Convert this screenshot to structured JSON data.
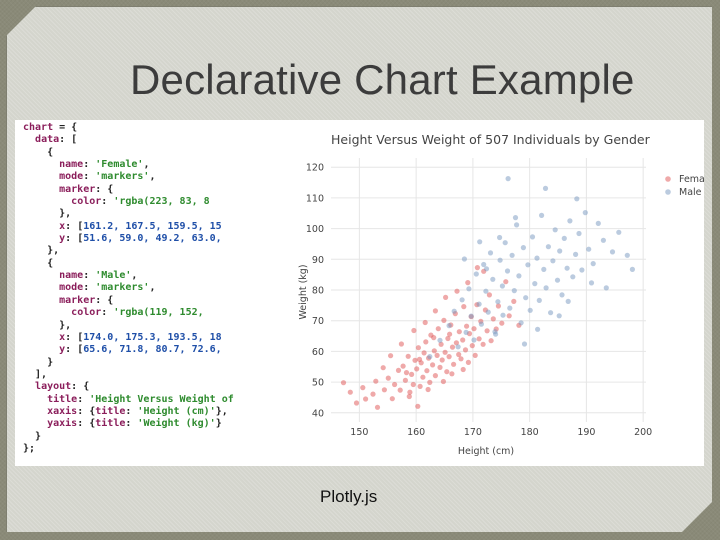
{
  "slide": {
    "title": "Declarative Chart Example",
    "caption": "Plotly.js"
  },
  "code": {
    "lines": [
      [
        [
          "key",
          "chart"
        ],
        [
          "pun",
          " = {"
        ]
      ],
      [
        [
          "pun",
          "  "
        ],
        [
          "key",
          "data"
        ],
        [
          "pun",
          ": ["
        ]
      ],
      [
        [
          "pun",
          "    {"
        ]
      ],
      [
        [
          "pun",
          "      "
        ],
        [
          "key",
          "name"
        ],
        [
          "pun",
          ": "
        ],
        [
          "str",
          "'Female'"
        ],
        [
          "pun",
          ","
        ]
      ],
      [
        [
          "pun",
          "      "
        ],
        [
          "key",
          "mode"
        ],
        [
          "pun",
          ": "
        ],
        [
          "str",
          "'markers'"
        ],
        [
          "pun",
          ","
        ]
      ],
      [
        [
          "pun",
          "      "
        ],
        [
          "key",
          "marker"
        ],
        [
          "pun",
          ": {"
        ]
      ],
      [
        [
          "pun",
          "        "
        ],
        [
          "key",
          "color"
        ],
        [
          "pun",
          ": "
        ],
        [
          "str",
          "'rgba(223, 83, 8"
        ]
      ],
      [
        [
          "pun",
          "      },"
        ]
      ],
      [
        [
          "pun",
          "      "
        ],
        [
          "key",
          "x"
        ],
        [
          "pun",
          ": ["
        ],
        [
          "num",
          "161.2, 167.5, 159.5, 15"
        ]
      ],
      [
        [
          "pun",
          "      "
        ],
        [
          "key",
          "y"
        ],
        [
          "pun",
          ": ["
        ],
        [
          "num",
          "51.6, 59.0, 49.2, 63.0,"
        ]
      ],
      [
        [
          "pun",
          "    },"
        ]
      ],
      [
        [
          "pun",
          "    {"
        ]
      ],
      [
        [
          "pun",
          "      "
        ],
        [
          "key",
          "name"
        ],
        [
          "pun",
          ": "
        ],
        [
          "str",
          "'Male'"
        ],
        [
          "pun",
          ","
        ]
      ],
      [
        [
          "pun",
          "      "
        ],
        [
          "key",
          "mode"
        ],
        [
          "pun",
          ": "
        ],
        [
          "str",
          "'markers'"
        ],
        [
          "pun",
          ","
        ]
      ],
      [
        [
          "pun",
          "      "
        ],
        [
          "key",
          "marker"
        ],
        [
          "pun",
          ": {"
        ]
      ],
      [
        [
          "pun",
          "        "
        ],
        [
          "key",
          "color"
        ],
        [
          "pun",
          ": "
        ],
        [
          "str",
          "'rgba(119, 152,"
        ]
      ],
      [
        [
          "pun",
          "      },"
        ]
      ],
      [
        [
          "pun",
          "      "
        ],
        [
          "key",
          "x"
        ],
        [
          "pun",
          ": ["
        ],
        [
          "num",
          "174.0, 175.3, 193.5, 18"
        ]
      ],
      [
        [
          "pun",
          "      "
        ],
        [
          "key",
          "y"
        ],
        [
          "pun",
          ": ["
        ],
        [
          "num",
          "65.6, 71.8, 80.7, 72.6,"
        ]
      ],
      [
        [
          "pun",
          "    }"
        ]
      ],
      [
        [
          "pun",
          "  ],"
        ]
      ],
      [
        [
          "pun",
          "  "
        ],
        [
          "key",
          "layout"
        ],
        [
          "pun",
          ": {"
        ]
      ],
      [
        [
          "pun",
          "    "
        ],
        [
          "key",
          "title"
        ],
        [
          "pun",
          ": "
        ],
        [
          "str",
          "'Height Versus Weight of"
        ]
      ],
      [
        [
          "pun",
          "    "
        ],
        [
          "key",
          "xaxis"
        ],
        [
          "pun",
          ": {"
        ],
        [
          "key",
          "title"
        ],
        [
          "pun",
          ": "
        ],
        [
          "str",
          "'Height (cm)'"
        ],
        [
          "pun",
          "},"
        ]
      ],
      [
        [
          "pun",
          "    "
        ],
        [
          "key",
          "yaxis"
        ],
        [
          "pun",
          ": {"
        ],
        [
          "key",
          "title"
        ],
        [
          "pun",
          ": "
        ],
        [
          "str",
          "'Weight (kg)'"
        ],
        [
          "pun",
          "}"
        ]
      ],
      [
        [
          "pun",
          "  }"
        ]
      ],
      [
        [
          "pun",
          "};"
        ]
      ]
    ]
  },
  "chart_data": {
    "type": "scatter",
    "title": "Height Versus Weight of 507 Individuals by Gender",
    "xlabel": "Height (cm)",
    "ylabel": "Weight (kg)",
    "xlim": [
      145,
      200.5
    ],
    "ylim": [
      37,
      123
    ],
    "xticks": [
      150,
      160,
      170,
      180,
      190,
      200
    ],
    "yticks": [
      40,
      50,
      60,
      70,
      80,
      90,
      100,
      110,
      120
    ],
    "grid": true,
    "legend_position": "top-right",
    "series": [
      {
        "name": "Female",
        "color": "rgba(223, 83, 83, 0.5)",
        "points": [
          [
            147.2,
            49.8
          ],
          [
            149.5,
            43.2
          ],
          [
            151.1,
            44.5
          ],
          [
            152.4,
            46.1
          ],
          [
            153.2,
            41.8
          ],
          [
            154.4,
            47.5
          ],
          [
            155.1,
            51.3
          ],
          [
            155.8,
            44.6
          ],
          [
            156.2,
            49.2
          ],
          [
            156.9,
            53.8
          ],
          [
            157.2,
            47.4
          ],
          [
            157.7,
            55.2
          ],
          [
            158.1,
            50.6
          ],
          [
            158.6,
            58.4
          ],
          [
            158.9,
            46.7
          ],
          [
            159.2,
            52.5
          ],
          [
            159.5,
            49.2
          ],
          [
            159.8,
            57.1
          ],
          [
            160.1,
            54.3
          ],
          [
            160.4,
            61.2
          ],
          [
            160.7,
            48.6
          ],
          [
            160.9,
            56.3
          ],
          [
            161.2,
            51.6
          ],
          [
            161.4,
            59.5
          ],
          [
            161.7,
            63.1
          ],
          [
            161.9,
            53.7
          ],
          [
            162.2,
            57.8
          ],
          [
            162.4,
            49.9
          ],
          [
            162.6,
            65.3
          ],
          [
            162.9,
            55.6
          ],
          [
            163.2,
            60.2
          ],
          [
            163.4,
            52.1
          ],
          [
            163.7,
            58.7
          ],
          [
            163.9,
            67.4
          ],
          [
            164.2,
            54.8
          ],
          [
            164.4,
            62.3
          ],
          [
            164.6,
            57.2
          ],
          [
            164.9,
            70.1
          ],
          [
            165.1,
            59.7
          ],
          [
            165.4,
            53.4
          ],
          [
            165.6,
            64.2
          ],
          [
            165.8,
            58.3
          ],
          [
            166.1,
            68.6
          ],
          [
            166.4,
            61.4
          ],
          [
            166.6,
            55.8
          ],
          [
            166.9,
            72.3
          ],
          [
            167.1,
            62.8
          ],
          [
            167.5,
            59.0
          ],
          [
            167.6,
            66.4
          ],
          [
            167.9,
            57.6
          ],
          [
            168.2,
            63.7
          ],
          [
            168.4,
            74.6
          ],
          [
            168.7,
            60.5
          ],
          [
            168.9,
            68.2
          ],
          [
            169.2,
            56.4
          ],
          [
            169.4,
            65.8
          ],
          [
            169.7,
            71.3
          ],
          [
            169.9,
            61.9
          ],
          [
            170.2,
            67.4
          ],
          [
            170.4,
            58.7
          ],
          [
            170.7,
            75.2
          ],
          [
            171.1,
            64.1
          ],
          [
            171.4,
            69.8
          ],
          [
            171.8,
            62.3
          ],
          [
            172.2,
            73.5
          ],
          [
            172.5,
            66.7
          ],
          [
            172.9,
            78.4
          ],
          [
            173.2,
            63.5
          ],
          [
            173.6,
            70.6
          ],
          [
            174.1,
            67.3
          ],
          [
            174.5,
            74.8
          ],
          [
            175.1,
            69.2
          ],
          [
            175.8,
            82.7
          ],
          [
            176.4,
            71.6
          ],
          [
            177.2,
            76.3
          ],
          [
            178.1,
            68.5
          ],
          [
            160.3,
            42.1
          ],
          [
            158.8,
            45.3
          ],
          [
            162.1,
            47.6
          ],
          [
            164.8,
            50.2
          ],
          [
            166.3,
            52.7
          ],
          [
            168.3,
            54.1
          ],
          [
            155.5,
            58.6
          ],
          [
            157.4,
            62.4
          ],
          [
            159.6,
            66.8
          ],
          [
            161.6,
            69.4
          ],
          [
            163.4,
            73.2
          ],
          [
            165.2,
            77.6
          ],
          [
            154.2,
            54.7
          ],
          [
            152.9,
            50.3
          ],
          [
            150.6,
            48.2
          ],
          [
            148.4,
            46.7
          ],
          [
            170.8,
            87.3
          ],
          [
            169.1,
            82.4
          ],
          [
            167.2,
            79.6
          ],
          [
            171.9,
            86.1
          ],
          [
            165.9,
            65.6
          ],
          [
            158.3,
            53.1
          ],
          [
            160.6,
            57.4
          ],
          [
            163.1,
            64.5
          ]
        ]
      },
      {
        "name": "Male",
        "color": "rgba(119, 152, 191, 0.5)",
        "points": [
          [
            162.4,
            58.3
          ],
          [
            164.2,
            63.6
          ],
          [
            165.8,
            68.4
          ],
          [
            166.7,
            73.1
          ],
          [
            167.4,
            61.5
          ],
          [
            168.1,
            76.8
          ],
          [
            168.8,
            66.2
          ],
          [
            169.3,
            80.4
          ],
          [
            169.7,
            71.5
          ],
          [
            170.2,
            63.7
          ],
          [
            170.6,
            85.2
          ],
          [
            171.1,
            75.4
          ],
          [
            171.5,
            68.9
          ],
          [
            171.9,
            88.3
          ],
          [
            172.3,
            79.6
          ],
          [
            172.7,
            72.8
          ],
          [
            173.1,
            92.1
          ],
          [
            173.5,
            83.5
          ],
          [
            173.9,
            66.4
          ],
          [
            174.0,
            65.6
          ],
          [
            174.4,
            76.2
          ],
          [
            174.8,
            89.7
          ],
          [
            175.2,
            81.3
          ],
          [
            175.3,
            71.8
          ],
          [
            175.7,
            95.4
          ],
          [
            176.1,
            86.2
          ],
          [
            176.5,
            74.1
          ],
          [
            176.9,
            91.3
          ],
          [
            177.3,
            79.8
          ],
          [
            177.7,
            101.2
          ],
          [
            178.1,
            84.6
          ],
          [
            178.5,
            69.3
          ],
          [
            178.9,
            93.8
          ],
          [
            179.3,
            77.5
          ],
          [
            179.7,
            88.2
          ],
          [
            180.1,
            73.4
          ],
          [
            180.5,
            97.3
          ],
          [
            180.9,
            82.1
          ],
          [
            181.3,
            90.4
          ],
          [
            181.7,
            76.6
          ],
          [
            182.1,
            104.3
          ],
          [
            182.5,
            86.7
          ],
          [
            182.9,
            80.7
          ],
          [
            183.3,
            94.1
          ],
          [
            183.7,
            72.6
          ],
          [
            184.1,
            89.5
          ],
          [
            184.5,
            99.6
          ],
          [
            184.9,
            83.2
          ],
          [
            185.3,
            92.7
          ],
          [
            185.7,
            78.4
          ],
          [
            186.1,
            96.8
          ],
          [
            186.6,
            87.1
          ],
          [
            187.1,
            102.5
          ],
          [
            187.6,
            84.3
          ],
          [
            188.1,
            91.6
          ],
          [
            188.7,
            98.4
          ],
          [
            189.2,
            86.5
          ],
          [
            189.8,
            105.2
          ],
          [
            190.4,
            93.3
          ],
          [
            191.2,
            88.6
          ],
          [
            192.1,
            101.7
          ],
          [
            193.0,
            96.2
          ],
          [
            193.5,
            80.7
          ],
          [
            194.6,
            92.4
          ],
          [
            195.7,
            98.8
          ],
          [
            197.2,
            91.3
          ],
          [
            198.1,
            86.7
          ],
          [
            176.2,
            116.3
          ],
          [
            188.3,
            109.7
          ],
          [
            182.8,
            113.1
          ],
          [
            179.1,
            62.4
          ],
          [
            181.4,
            67.2
          ],
          [
            185.2,
            71.6
          ],
          [
            172.4,
            86.9
          ],
          [
            174.7,
            97.1
          ],
          [
            177.5,
            103.6
          ],
          [
            186.8,
            76.3
          ],
          [
            190.9,
            82.3
          ],
          [
            168.5,
            90.1
          ],
          [
            171.2,
            95.7
          ]
        ]
      }
    ]
  }
}
